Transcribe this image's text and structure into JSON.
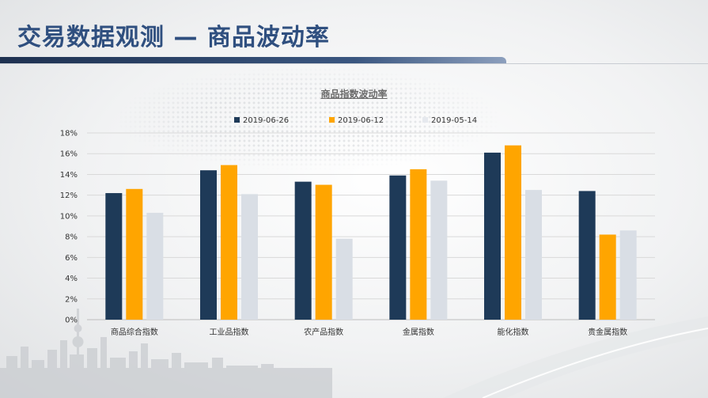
{
  "page": {
    "title": "交易数据观测 — 商品波动率"
  },
  "colors": {
    "title": "#2f4f7f",
    "header_bar": "#1e3150",
    "series": [
      "#1e3a58",
      "#ffa500",
      "#d9dee5"
    ]
  },
  "chart_data": {
    "type": "bar",
    "title": "商品指数波动率",
    "xlabel": "",
    "ylabel": "",
    "categories": [
      "商品综合指数",
      "工业品指数",
      "农产品指数",
      "金属指数",
      "能化指数",
      "贵金属指数"
    ],
    "series": [
      {
        "name": "2019-06-26",
        "values": [
          12.2,
          14.4,
          13.3,
          13.9,
          16.1,
          12.4
        ]
      },
      {
        "name": "2019-06-12",
        "values": [
          12.6,
          14.9,
          13.0,
          14.5,
          16.8,
          8.2
        ]
      },
      {
        "name": "2019-05-14",
        "values": [
          10.3,
          12.1,
          7.8,
          13.4,
          12.5,
          8.6
        ]
      }
    ],
    "ylim": [
      0,
      18
    ],
    "yticks": [
      "0%",
      "2%",
      "4%",
      "6%",
      "8%",
      "10%",
      "12%",
      "14%",
      "16%",
      "18%"
    ],
    "grid": true,
    "legend_position": "top-center"
  }
}
